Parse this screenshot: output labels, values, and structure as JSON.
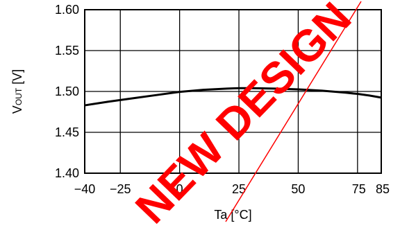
{
  "chart_data": {
    "type": "line",
    "title": "",
    "xlabel": "Ta [°C]",
    "ylabel_main": "V",
    "ylabel_sub": "OUT",
    "ylabel_unit": " [V]",
    "xlim": [
      -40,
      85
    ],
    "ylim": [
      1.4,
      1.6
    ],
    "x_ticks": [
      -40,
      -25,
      0,
      25,
      50,
      75,
      85
    ],
    "x_tick_labels": [
      "−40",
      "−25",
      "0",
      "25",
      "50",
      "75",
      "85"
    ],
    "y_ticks": [
      1.4,
      1.45,
      1.5,
      1.55,
      1.6
    ],
    "y_tick_labels": [
      "1.40",
      "1.45",
      "1.50",
      "1.55",
      "1.60"
    ],
    "grid": true,
    "series": [
      {
        "x": [
          -40,
          -30,
          -20,
          -10,
          0,
          10,
          20,
          25,
          30,
          40,
          50,
          60,
          70,
          75,
          80,
          85
        ],
        "y": [
          1.483,
          1.4875,
          1.4915,
          1.4955,
          1.4995,
          1.502,
          1.5035,
          1.504,
          1.504,
          1.5035,
          1.5025,
          1.501,
          1.4985,
          1.497,
          1.495,
          1.4925
        ]
      }
    ],
    "watermark": "NEW DESIGN",
    "line_color": "#000000",
    "watermark_color": "#ff0000"
  }
}
